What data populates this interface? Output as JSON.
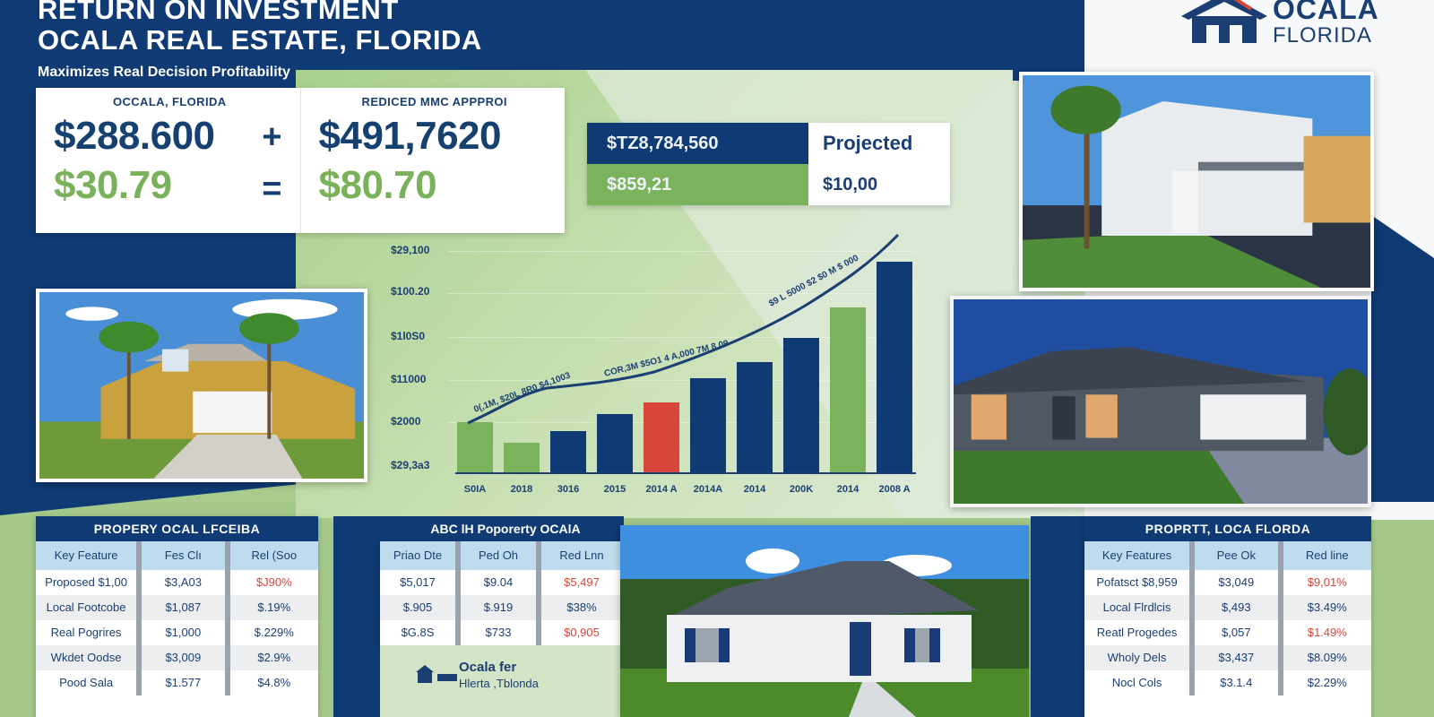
{
  "header": {
    "title_line1": "RETURN ON INVESTMENT",
    "title_line2": "OCALA REAL ESTATE, FLORIDA",
    "subtitle": "Maximizes Real Decision Profitability"
  },
  "logo": {
    "line1": "OCALA",
    "line2": "FLORIDA",
    "icon": "house-icon"
  },
  "hero": {
    "left_label": "OCCALA, FLORIDA",
    "left_value": "$288.600",
    "left_operator": "+",
    "left_secondary": "$30.79",
    "left_equals": "=",
    "right_label": "REDICED MMC APPPROI",
    "right_value": "$491,7620",
    "right_secondary": "$80.70"
  },
  "projection": {
    "row1_value": "$TZ8,784,560",
    "row1_label": "Projected",
    "row2_value": "$859,21",
    "row2_label": "$10,00",
    "colors": {
      "navy": "#0f3a74",
      "green": "#7bb35c"
    }
  },
  "chart_data": {
    "type": "bar",
    "title": "",
    "xlabel": "",
    "ylabel": "",
    "y_tick_labels": [
      "$29,100",
      "$100.20",
      "$1l0S0",
      "$11000",
      "$2000",
      "$29,3a3"
    ],
    "categories": [
      "S0IA",
      "2018",
      "3016",
      "2015",
      "2014 A",
      "2014A",
      "2014",
      "200K",
      "2014",
      "2008 A"
    ],
    "values": [
      30,
      18,
      25,
      35,
      42,
      56,
      66,
      80,
      98,
      125
    ],
    "bar_colors": [
      "#7bb35c",
      "#7bb35c",
      "#0f3a74",
      "#0f3a74",
      "#d6463a",
      "#0f3a74",
      "#0f3a74",
      "#0f3a74",
      "#7bb35c",
      "#0f3a74"
    ],
    "trend_line": {
      "color": "#1b3f73",
      "annotation": "0(,1M, $20L 8R0 $4,1003 COR,3M $5O1 4 A,000 7M 8 09 $9 L 5000 $2 $0 M $ 000"
    },
    "ylim": [
      0,
      130
    ],
    "grid": true,
    "legend": null
  },
  "photos": [
    {
      "name": "yellow-two-story-house-photo",
      "alt": "Two-story yellow stucco house with palm trees"
    },
    {
      "name": "gray-white-two-story-house-photo",
      "alt": "Gray and white two-story house with palm tree"
    },
    {
      "name": "gray-ranch-house-photo",
      "alt": "Dark gray house with double garage at dusk"
    },
    {
      "name": "white-ranch-house-photo",
      "alt": "White ranch house with navy shutters"
    }
  ],
  "tables": {
    "left": {
      "title": "PROPERY OCAL LFCEIBA",
      "headers": [
        "Key Feature",
        "Fes Clı",
        "Rel (Soo"
      ],
      "rows": [
        [
          "Proposed $1,00",
          "$3,A03",
          "$J90%"
        ],
        [
          "Local Footcobe",
          "$1,087",
          "$.19%"
        ],
        [
          "Real Pogrires",
          "$1,000",
          "$.229%"
        ],
        [
          "Wkdet Oodse",
          "$3,009",
          "$2.9%"
        ],
        [
          "Pood Sala",
          "$1.577",
          "$4.8%"
        ]
      ],
      "red_cells": [
        [
          0,
          2
        ]
      ]
    },
    "middle": {
      "title": "ABC lH Poporerty OCAlA",
      "headers": [
        "Priao Dte",
        "Ped Oh",
        "Red Lnn"
      ],
      "rows": [
        [
          "$5,017",
          "$9.04",
          "$5,497"
        ],
        [
          "$.905",
          "$.919",
          "$38%"
        ],
        [
          "$G.8S",
          "$733",
          "$0,905"
        ]
      ],
      "red_cells": [
        [
          0,
          2
        ],
        [
          2,
          2
        ]
      ],
      "footer_line1": "Ocala fer",
      "footer_line2": "Hlerta ,Tblonda"
    },
    "right": {
      "title": "PROPRTT, LOCA FLORDA",
      "headers": [
        "Key Features",
        "Pee Ok",
        "Red line"
      ],
      "rows": [
        [
          "Pofatsct $8,959",
          "$3,049",
          "$9,01%"
        ],
        [
          "Local Flrdlcis",
          "$,493",
          "$3.49%"
        ],
        [
          "Reatl Progedes",
          "$,057",
          "$1.49%"
        ],
        [
          "Wholy Dels",
          "$3,437",
          "$8.09%"
        ],
        [
          "Nocl Cols",
          "$3.1.4",
          "$2.29%"
        ]
      ],
      "red_cells": [
        [
          0,
          2
        ],
        [
          2,
          2
        ]
      ]
    }
  }
}
